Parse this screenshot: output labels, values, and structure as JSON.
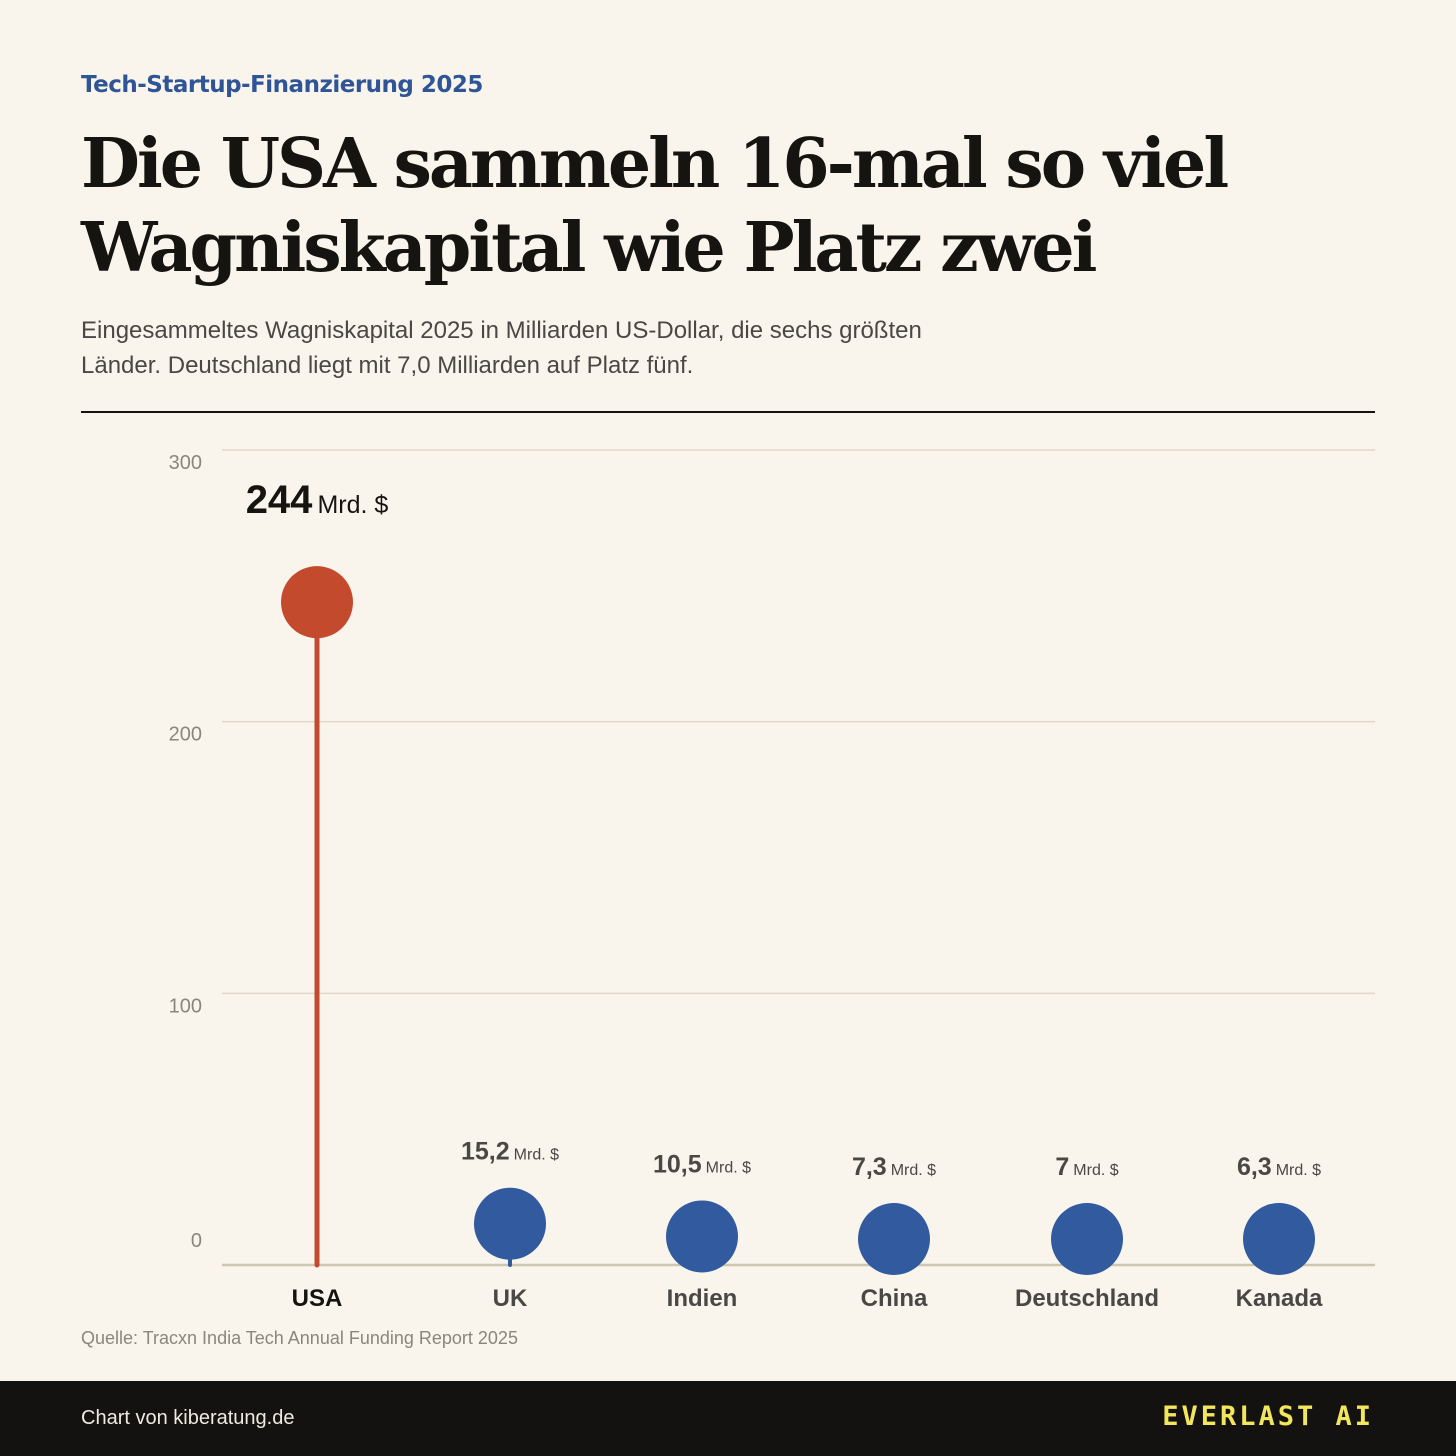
{
  "kicker": "Tech-Startup-Finanzierung 2025",
  "title": "Die USA sammeln 16-mal so viel Wagniskapital wie Platz zwei",
  "subtitle": "Eingesammeltes Wagniskapital 2025 in Milliarden US-Dollar, die sechs größten Länder. Deutschland liegt mit 7,0 Milliarden auf Platz fünf.",
  "source": "Quelle: Tracxn India Tech Annual Funding Report 2025",
  "footer": {
    "credit": "Chart von kiberatung.de",
    "brand": "EVERLAST AI"
  },
  "colors": {
    "background": "#f9f5ec",
    "highlight": "#c34a2c",
    "bar": "#325a9e",
    "kicker": "#2f5597",
    "brand": "#f2e65c"
  },
  "chart_data": {
    "type": "lollipop",
    "categories": [
      "USA",
      "UK",
      "Indien",
      "China",
      "Deutschland",
      "Kanada"
    ],
    "values": [
      244,
      15.2,
      10.5,
      7.3,
      7,
      6.3
    ],
    "value_labels": [
      "244",
      "15,2",
      "10,5",
      "7,3",
      "7",
      "6,3"
    ],
    "unit": "Mrd. $",
    "highlight_category": "USA",
    "ylim": [
      0,
      300
    ],
    "yticks": [
      0,
      100,
      200,
      300
    ],
    "grid": true
  }
}
